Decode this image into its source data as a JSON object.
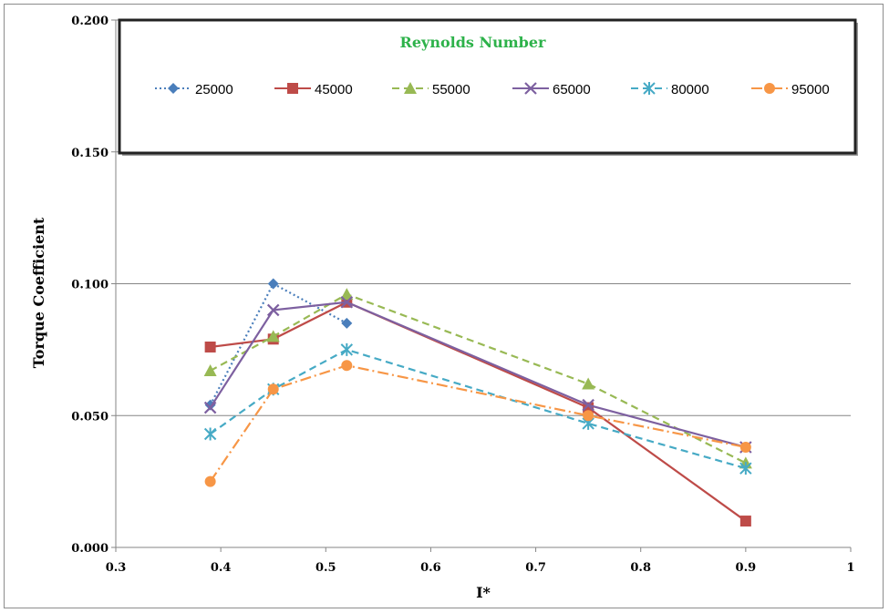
{
  "chart_data": {
    "type": "line",
    "xlabel": "I*",
    "ylabel": "Torque Coefficient",
    "xlim": [
      0.3,
      1
    ],
    "ylim": [
      0,
      0.2
    ],
    "x_ticks": [
      "0.3",
      "0.4",
      "0.5",
      "0.6",
      "0.7",
      "0.8",
      "0.9",
      "1"
    ],
    "y_ticks": [
      "0.000",
      "0.050",
      "0.100",
      "0.150",
      "0.200"
    ],
    "grid": "horizontal",
    "legend": {
      "title": "Reynolds Number",
      "title_color": "#2db24a",
      "placement": "top"
    },
    "series": [
      {
        "name": "25000",
        "color": "#4a7ebb",
        "dash": "dotted",
        "marker": "diamond",
        "x": [
          0.39,
          0.45,
          0.52
        ],
        "y": [
          0.054,
          0.1,
          0.085
        ]
      },
      {
        "name": "45000",
        "color": "#be4b48",
        "dash": "solid",
        "marker": "square",
        "x": [
          0.39,
          0.45,
          0.52,
          0.75,
          0.9
        ],
        "y": [
          0.076,
          0.079,
          0.093,
          0.053,
          0.01
        ]
      },
      {
        "name": "55000",
        "color": "#98b954",
        "dash": "dashed",
        "marker": "triangle",
        "x": [
          0.39,
          0.45,
          0.52,
          0.75,
          0.9
        ],
        "y": [
          0.067,
          0.08,
          0.096,
          0.062,
          0.032
        ]
      },
      {
        "name": "65000",
        "color": "#7d60a0",
        "dash": "solid",
        "marker": "x",
        "x": [
          0.39,
          0.45,
          0.52,
          0.75,
          0.9
        ],
        "y": [
          0.053,
          0.09,
          0.093,
          0.054,
          0.038
        ]
      },
      {
        "name": "80000",
        "color": "#46aac5",
        "dash": "dashed",
        "marker": "asterisk",
        "x": [
          0.39,
          0.45,
          0.52,
          0.75,
          0.9
        ],
        "y": [
          0.043,
          0.06,
          0.075,
          0.047,
          0.03
        ]
      },
      {
        "name": "95000",
        "color": "#f79646",
        "dash": "dashdot",
        "marker": "circle",
        "x": [
          0.39,
          0.45,
          0.52,
          0.75,
          0.9
        ],
        "y": [
          0.025,
          0.06,
          0.069,
          0.05,
          0.038
        ]
      }
    ]
  }
}
